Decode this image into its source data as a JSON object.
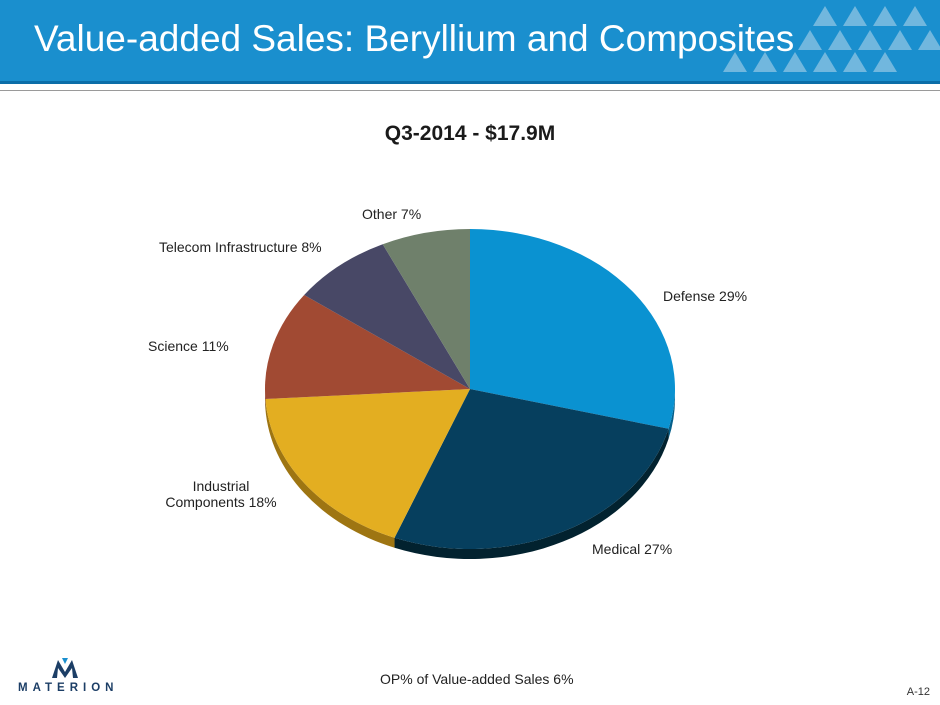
{
  "slide": {
    "title": "Value-added Sales:  Beryllium and Composites",
    "footer_note": "OP% of Value-added Sales  6%",
    "page_number": "A-12",
    "logo_text": "MATERION"
  },
  "colors": {
    "header": "#1a8fce",
    "defense": "#0a92d1",
    "medical": "#063f5e",
    "industrial": "#e3ae21",
    "science": "#a14a33",
    "telecom": "#484866",
    "other": "#6f806b"
  },
  "chart_data": {
    "type": "pie",
    "title": "Q3-2014 - $17.9M",
    "slices": [
      {
        "label": "Defense 29%",
        "value": 29,
        "color": "#0a92d1",
        "side": "#055f8a"
      },
      {
        "label": "Medical 27%",
        "value": 27,
        "color": "#063f5e",
        "side": "#02222f"
      },
      {
        "label": "Industrial Components 18%",
        "label_lines": [
          "Industrial",
          "Components 18%"
        ],
        "value": 18,
        "color": "#e3ae21",
        "side": "#9e7512"
      },
      {
        "label": "Science 11%",
        "value": 11,
        "color": "#a14a33",
        "side": "#6b2d1e"
      },
      {
        "label": "Telecom Infrastructure 8%",
        "value": 8,
        "color": "#484866",
        "side": "#2c2c40"
      },
      {
        "label": "Other 7%",
        "value": 7,
        "color": "#6f806b",
        "side": "#485345"
      }
    ]
  }
}
